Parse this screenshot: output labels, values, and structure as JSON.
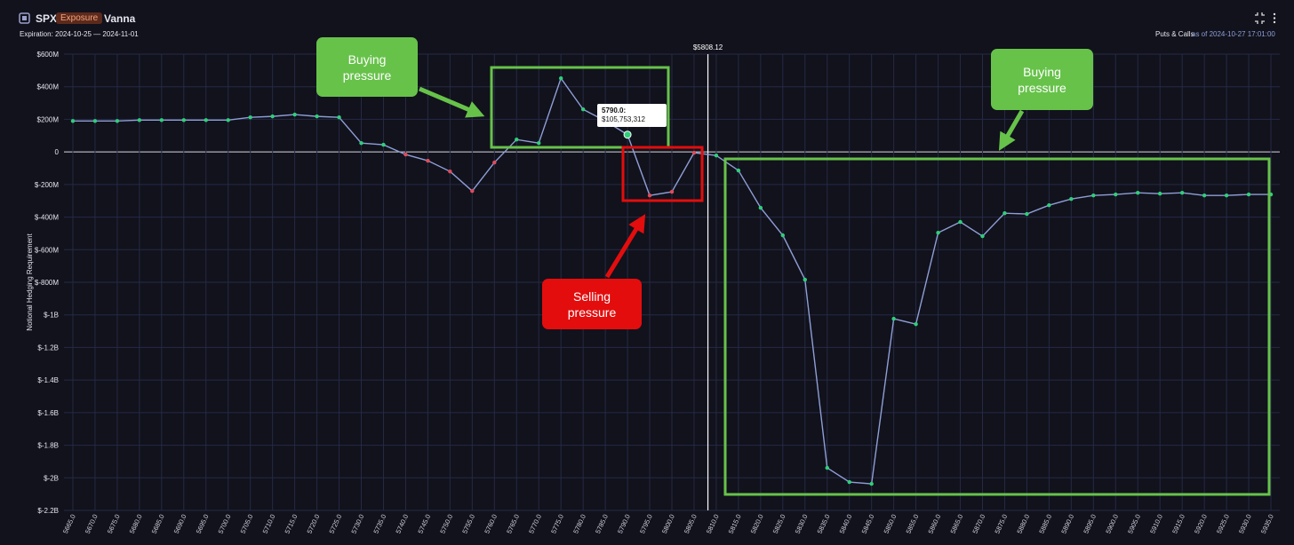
{
  "header": {
    "symbol": "SPX",
    "badge": "Exposure",
    "metric": "Vanna",
    "expiration": "Expiration: 2024-10-25 — 2024-11-01",
    "mode": "Puts & Calls",
    "as_of": "as of 2024-10-27 17:01:00"
  },
  "chart_data": {
    "type": "line",
    "y_label": "Notional Hedging Requirement",
    "x": [
      5665,
      5670,
      5675,
      5680,
      5685,
      5690,
      5695,
      5700,
      5705,
      5710,
      5715,
      5720,
      5725,
      5730,
      5735,
      5740,
      5745,
      5750,
      5755,
      5760,
      5765,
      5770,
      5775,
      5780,
      5785,
      5790,
      5795,
      5800,
      5805,
      5810,
      5815,
      5820,
      5825,
      5830,
      5835,
      5840,
      5845,
      5850,
      5855,
      5860,
      5865,
      5870,
      5875,
      5880,
      5885,
      5890,
      5895,
      5900,
      5905,
      5910,
      5915,
      5920,
      5925,
      5930,
      5935
    ],
    "series": [
      {
        "color": "#8f9ed6",
        "values": [
          190000000,
          190000000,
          190000000,
          195000000,
          195000000,
          195000000,
          195000000,
          195000000,
          212000000,
          218000000,
          229000000,
          218000000,
          212000000,
          54000000,
          44000000,
          -16000000,
          -54000000,
          -120000000,
          -240000000,
          -65000000,
          76000000,
          54000000,
          452000000,
          261000000,
          190000000,
          105753312,
          -267000000,
          -245000000,
          -5000000,
          -22000000,
          -114000000,
          -343000000,
          -512000000,
          -784000000,
          -1939000000,
          -2026000000,
          -2037000000,
          -1024000000,
          -1057000000,
          -496000000,
          -430000000,
          -517000000,
          -376000000,
          -381000000,
          -327000000,
          -289000000,
          -267000000,
          -261000000,
          -251000000,
          -256000000,
          -251000000,
          -267000000,
          -267000000,
          -261000000,
          -261000000
        ],
        "marker_colors": [
          "#2fcf7a",
          "#2fcf7a",
          "#2fcf7a",
          "#2fcf7a",
          "#2fcf7a",
          "#2fcf7a",
          "#2fcf7a",
          "#2fcf7a",
          "#2fcf7a",
          "#2fcf7a",
          "#2fcf7a",
          "#2fcf7a",
          "#2fcf7a",
          "#2fcf7a",
          "#2fcf7a",
          "#e04b5a",
          "#e04b5a",
          "#e04b5a",
          "#e04b5a",
          "#e04b5a",
          "#2fcf7a",
          "#2fcf7a",
          "#2fcf7a",
          "#2fcf7a",
          "#2fcf7a",
          "#2fcf7a",
          "#e04b5a",
          "#e04b5a",
          "#e04b5a",
          "#2fcf7a",
          "#2fcf7a",
          "#2fcf7a",
          "#2fcf7a",
          "#2fcf7a",
          "#2fcf7a",
          "#2fcf7a",
          "#2fcf7a",
          "#2fcf7a",
          "#2fcf7a",
          "#2fcf7a",
          "#2fcf7a",
          "#2fcf7a",
          "#2fcf7a",
          "#2fcf7a",
          "#2fcf7a",
          "#2fcf7a",
          "#2fcf7a",
          "#2fcf7a",
          "#2fcf7a",
          "#2fcf7a",
          "#2fcf7a",
          "#2fcf7a",
          "#2fcf7a",
          "#2fcf7a",
          "#2fcf7a"
        ]
      }
    ],
    "xlim": [
      5663,
      5937
    ],
    "ylim": [
      -2200000000,
      600000000
    ],
    "yticks": [
      {
        "value": 600000000,
        "label": "$600M"
      },
      {
        "value": 400000000,
        "label": "$400M"
      },
      {
        "value": 200000000,
        "label": "$200M"
      },
      0,
      {
        "value": -200000000,
        "label": "$-200M"
      },
      {
        "value": -400000000,
        "label": "$-400M"
      },
      {
        "value": -600000000,
        "label": "$-600M"
      },
      {
        "value": -800000000,
        "label": "$-800M"
      },
      {
        "value": -1000000000,
        "label": "$-1B"
      },
      {
        "value": -1200000000,
        "label": "$-1.2B"
      },
      {
        "value": -1400000000,
        "label": "$-1.4B"
      },
      {
        "value": -1600000000,
        "label": "$-1.6B"
      },
      {
        "value": -1800000000,
        "label": "$-1.8B"
      },
      {
        "value": -2000000000,
        "label": "$-2B"
      },
      {
        "value": -2200000000,
        "label": "$-2.2B"
      }
    ],
    "xticks": [
      {
        "value": 5665,
        "label": "5665.0"
      },
      {
        "value": 5670,
        "label": "5670.0"
      },
      {
        "value": 5675,
        "label": "5675.0"
      },
      {
        "value": 5680,
        "label": "5680.0"
      },
      {
        "value": 5685,
        "label": "5685.0"
      },
      {
        "value": 5690,
        "label": "5690.0"
      },
      {
        "value": 5695,
        "label": "5695.0"
      },
      {
        "value": 5700,
        "label": "5700.0"
      },
      {
        "value": 5705,
        "label": "5705.0"
      },
      {
        "value": 5710,
        "label": "5710.0"
      },
      {
        "value": 5715,
        "label": "5715.0"
      },
      {
        "value": 5720,
        "label": "5720.0"
      },
      {
        "value": 5725,
        "label": "5725.0"
      },
      {
        "value": 5730,
        "label": "5730.0"
      },
      {
        "value": 5735,
        "label": "5735.0"
      },
      {
        "value": 5740,
        "label": "5740.0"
      },
      {
        "value": 5745,
        "label": "5745.0"
      },
      {
        "value": 5750,
        "label": "5750.0"
      },
      {
        "value": 5755,
        "label": "5755.0"
      },
      {
        "value": 5760,
        "label": "5760.0"
      },
      {
        "value": 5765,
        "label": "5765.0"
      },
      {
        "value": 5770,
        "label": "5770.0"
      },
      {
        "value": 5775,
        "label": "5775.0"
      },
      {
        "value": 5780,
        "label": "5780.0"
      },
      {
        "value": 5785,
        "label": "5785.0"
      },
      {
        "value": 5790,
        "label": "5790.0"
      },
      {
        "value": 5795,
        "label": "5795.0"
      },
      {
        "value": 5800,
        "label": "5800.0"
      },
      {
        "value": 5805,
        "label": "5805.0"
      },
      {
        "value": 5810,
        "label": "5810.0"
      },
      {
        "value": 5815,
        "label": "5815.0"
      },
      {
        "value": 5820,
        "label": "5820.0"
      },
      {
        "value": 5825,
        "label": "5825.0"
      },
      {
        "value": 5830,
        "label": "5830.0"
      },
      {
        "value": 5835,
        "label": "5835.0"
      },
      {
        "value": 5840,
        "label": "5840.0"
      },
      {
        "value": 5845,
        "label": "5845.0"
      },
      {
        "value": 5850,
        "label": "5850.0"
      },
      {
        "value": 5855,
        "label": "5855.0"
      },
      {
        "value": 5860,
        "label": "5860.0"
      },
      {
        "value": 5865,
        "label": "5865.0"
      },
      {
        "value": 5870,
        "label": "5870.0"
      },
      {
        "value": 5875,
        "label": "5875.0"
      },
      {
        "value": 5880,
        "label": "5880.0"
      },
      {
        "value": 5885,
        "label": "5885.0"
      },
      {
        "value": 5890,
        "label": "5890.0"
      },
      {
        "value": 5895,
        "label": "5895.0"
      },
      {
        "value": 5900,
        "label": "5900.0"
      },
      {
        "value": 5905,
        "label": "5905.0"
      },
      {
        "value": 5910,
        "label": "5910.0"
      },
      {
        "value": 5915,
        "label": "5915.0"
      },
      {
        "value": 5920,
        "label": "5920.0"
      },
      {
        "value": 5925,
        "label": "5925.0"
      },
      {
        "value": 5930,
        "label": "5930.0"
      },
      {
        "value": 5935,
        "label": "5935.0"
      }
    ],
    "grid": true,
    "spot": {
      "value": 5808.12,
      "label": "$5808.12"
    },
    "tooltip": {
      "x": {
        "value": 5790,
        "label": "5790.0:"
      },
      "y": {
        "value": 105753312,
        "label": "$105,753,312"
      }
    },
    "annotations": [
      {
        "text": "Buying pressure"
      },
      {
        "text": "Buying pressure"
      },
      {
        "text": "Selling pressure"
      }
    ]
  }
}
